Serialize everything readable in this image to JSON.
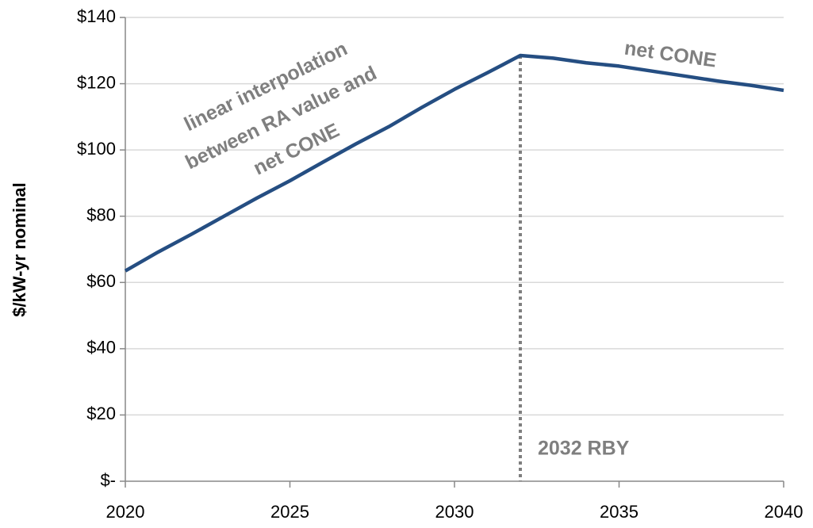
{
  "chart_data": {
    "type": "line",
    "y_label": "$/kW-yr nominal",
    "x": [
      2020,
      2021,
      2022,
      2023,
      2024,
      2025,
      2026,
      2027,
      2028,
      2029,
      2030,
      2031,
      2032,
      2033,
      2034,
      2035,
      2036,
      2037,
      2038,
      2039,
      2040
    ],
    "series": [
      {
        "color": "#254e82",
        "values": [
          63.5,
          69.2,
          74.5,
          80,
          85.5,
          90.7,
          96.3,
          101.8,
          107,
          112.8,
          118.3,
          123.3,
          128.5,
          127.7,
          126.3,
          125.3,
          123.8,
          122.3,
          120.8,
          119.5,
          118
        ]
      }
    ],
    "xlim": [
      2020,
      2040
    ],
    "xticks": [
      2020,
      2025,
      2030,
      2035,
      2040
    ],
    "ylim": [
      0,
      140
    ],
    "yticks": [
      {
        "value": 0,
        "label": "$-"
      },
      {
        "value": 20,
        "label": "$20"
      },
      {
        "value": 40,
        "label": "$40"
      },
      {
        "value": 60,
        "label": "$60"
      },
      {
        "value": 80,
        "label": "$80"
      },
      {
        "value": 100,
        "label": "$100"
      },
      {
        "value": 120,
        "label": "$120"
      },
      {
        "value": 140,
        "label": "$140"
      }
    ],
    "grid": true,
    "reference_line": {
      "x": 2032,
      "label": "2032 RBY",
      "color": "#7f7f7f"
    },
    "annotations": [
      {
        "lines": [
          "linear interpolation",
          "between RA value and",
          "net CONE"
        ]
      },
      {
        "lines": [
          "net CONE"
        ]
      }
    ]
  }
}
